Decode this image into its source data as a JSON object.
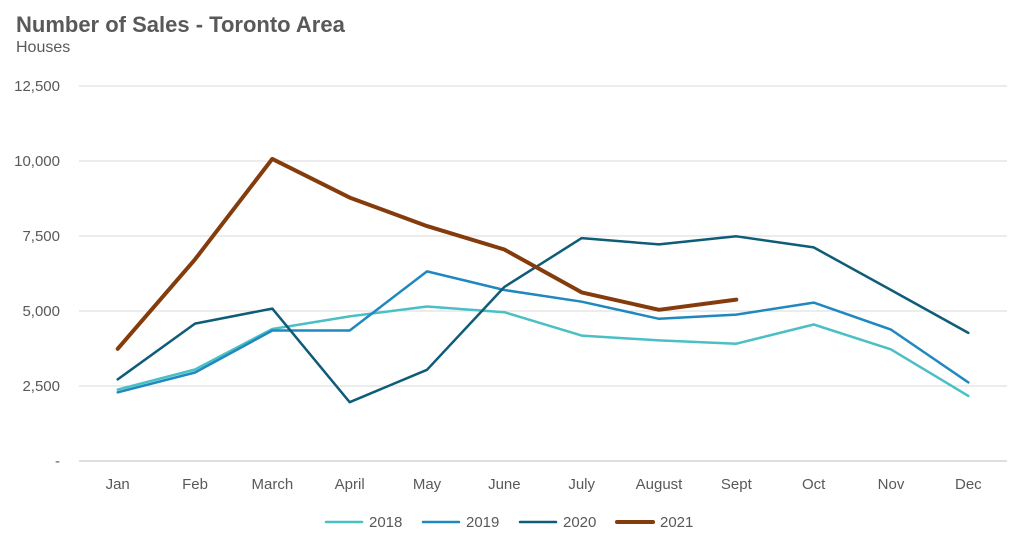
{
  "chart_data": {
    "type": "line",
    "title": "Number of Sales - Toronto Area",
    "subtitle": "Houses",
    "xlabel": "",
    "ylabel": "",
    "categories": [
      "Jan",
      "Feb",
      "March",
      "April",
      "May",
      "June",
      "July",
      "August",
      "Sept",
      "Oct",
      "Nov",
      "Dec"
    ],
    "ylim": [
      0,
      12500
    ],
    "yticks": [
      0,
      2500,
      5000,
      7500,
      10000,
      12500
    ],
    "ytick_labels": [
      "-",
      "2,500",
      "5,000",
      "7,500",
      "10,000",
      "12,500"
    ],
    "grid": true,
    "legend_position": "bottom",
    "series": [
      {
        "name": "2018",
        "color": "#4bbfc6",
        "values": [
          2380,
          3050,
          4400,
          4820,
          5150,
          4960,
          4180,
          4020,
          3910,
          4550,
          3720,
          2170
        ]
      },
      {
        "name": "2019",
        "color": "#1f88bf",
        "values": [
          2290,
          2950,
          4350,
          4350,
          6320,
          5700,
          5310,
          4740,
          4880,
          5280,
          4380,
          2620
        ]
      },
      {
        "name": "2020",
        "color": "#0e5c78",
        "values": [
          2720,
          4580,
          5080,
          1960,
          3040,
          5800,
          7430,
          7220,
          7490,
          7120,
          5700,
          4270
        ]
      },
      {
        "name": "2021",
        "color": "#843c0c",
        "values": [
          3740,
          6720,
          10070,
          8780,
          7830,
          7050,
          5620,
          5040,
          5380,
          null,
          null,
          null
        ]
      }
    ]
  }
}
